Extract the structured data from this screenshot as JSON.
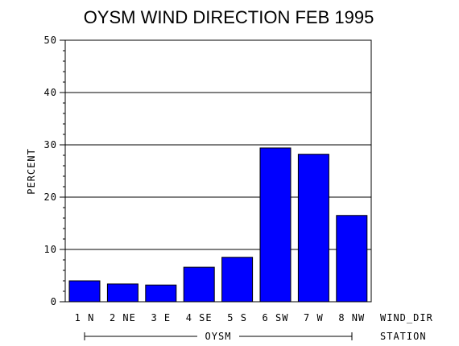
{
  "chart_data": {
    "type": "bar",
    "title": "OYSM WIND DIRECTION FEB 1995",
    "ylabel": "PERCENT",
    "xlabel": "WIND_DIR",
    "group_axis_label": "STATION",
    "group_label": "OYSM",
    "ylim": [
      0,
      50
    ],
    "yticks": [
      0,
      10,
      20,
      30,
      40,
      50
    ],
    "grid": true,
    "categories": [
      "1 N",
      "2 NE",
      "3 E",
      "4 SE",
      "5 S",
      "6 SW",
      "7 W",
      "8 NW"
    ],
    "values": [
      4.0,
      3.4,
      3.2,
      6.6,
      8.5,
      29.4,
      28.2,
      16.5
    ],
    "bar_color": "#0000ff"
  }
}
